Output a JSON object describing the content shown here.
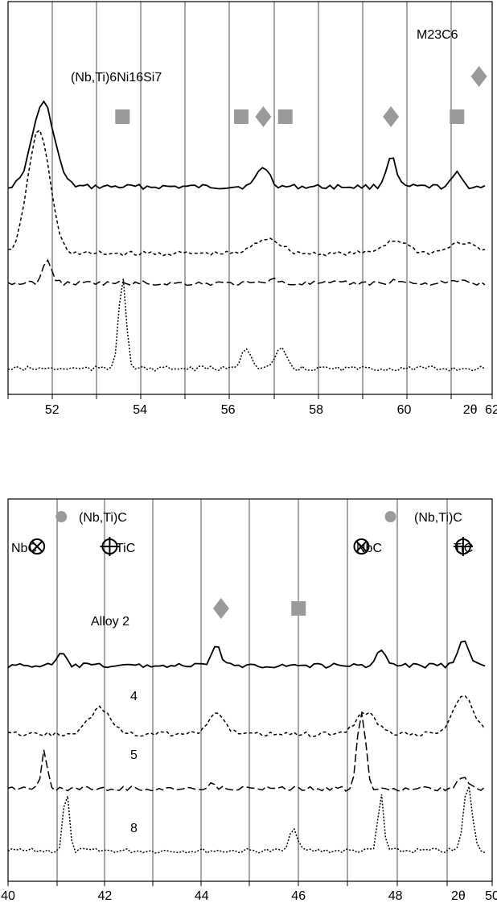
{
  "chart_data": [
    {
      "type": "line",
      "panel": "top",
      "xlim": [
        51,
        62
      ],
      "x_ticks": [
        "52",
        "54",
        "56",
        "58",
        "60",
        "2θ",
        "62"
      ],
      "x_tick_values": [
        52,
        54,
        56,
        58,
        60,
        61.5,
        62
      ],
      "annotations": [
        {
          "text": "(Nb,Ti)6Ni16Si7",
          "phase": "(Nb,Ti)6Ni16Si7",
          "marker": "square"
        },
        {
          "text": "M23C6",
          "phase": "M23C6",
          "marker": "diamond"
        }
      ],
      "phase_markers": [
        {
          "shape": "square",
          "x": 53.6
        },
        {
          "shape": "square",
          "x": 56.3
        },
        {
          "shape": "diamond",
          "x": 56.8
        },
        {
          "shape": "square",
          "x": 57.3
        },
        {
          "shape": "diamond",
          "x": 59.7
        },
        {
          "shape": "square",
          "x": 61.2
        },
        {
          "shape": "diamond",
          "x": 61.7
        }
      ],
      "series": [
        {
          "style": "solid",
          "baseline": 0.78,
          "peaks": [
            [
              51.8,
              1.9,
              0.35
            ],
            [
              56.8,
              0.45,
              0.2
            ],
            [
              59.7,
              0.7,
              0.15
            ],
            [
              61.2,
              0.3,
              0.15
            ]
          ]
        },
        {
          "style": "dashed",
          "baseline": 0.55,
          "peaks": [
            [
              51.7,
              2.8,
              0.35
            ],
            [
              56.9,
              0.35,
              0.4
            ],
            [
              59.8,
              0.3,
              0.4
            ],
            [
              61.3,
              0.25,
              0.4
            ]
          ]
        },
        {
          "style": "longdash",
          "baseline": 0.35,
          "peaks": [
            [
              51.9,
              0.5,
              0.15
            ],
            [
              57.0,
              0.12,
              0.15
            ],
            [
              59.8,
              0.07,
              0.2
            ],
            [
              61.2,
              0.05,
              0.2
            ]
          ]
        },
        {
          "style": "dotted",
          "baseline": 0.12,
          "peaks": [
            [
              53.6,
              2.1,
              0.12
            ],
            [
              56.4,
              0.5,
              0.15
            ],
            [
              57.2,
              0.5,
              0.15
            ]
          ]
        }
      ]
    },
    {
      "type": "line",
      "panel": "bottom",
      "xlim": [
        40,
        50
      ],
      "x_ticks": [
        "40",
        "42",
        "44",
        "46",
        "48",
        "2θ",
        "50"
      ],
      "x_tick_values": [
        40,
        42,
        44,
        46,
        48,
        49.3,
        50
      ],
      "annotations": [
        {
          "text": "(Nb,Ti)C",
          "phase": "(Nb,Ti)C",
          "marker": "dot"
        },
        {
          "text": "(Nb,Ti)C",
          "phase": "(Nb,Ti)C",
          "marker": "dot"
        },
        {
          "text": "NbC",
          "phase": "NbC",
          "marker": "otimes"
        },
        {
          "text": "TiC",
          "phase": "TiC",
          "marker": "oplus"
        },
        {
          "text": "NbC",
          "phase": "NbC",
          "marker": "otimes"
        },
        {
          "text": "TiC",
          "phase": "TiC",
          "marker": "oplus"
        }
      ],
      "phase_markers": [
        {
          "shape": "dot",
          "x": 41.1
        },
        {
          "shape": "dot",
          "x": 47.9
        },
        {
          "shape": "otimes",
          "x": 40.6
        },
        {
          "shape": "oplus",
          "x": 42.1
        },
        {
          "shape": "otimes",
          "x": 47.3
        },
        {
          "shape": "oplus",
          "x": 49.4
        },
        {
          "shape": "diamond",
          "x": 44.4
        },
        {
          "shape": "square",
          "x": 46.0
        }
      ],
      "series": [
        {
          "name": "Alloy 2",
          "label": "Alloy 2",
          "style": "solid",
          "baseline": 0.76,
          "peaks": [
            [
              41.1,
              0.25,
              0.12
            ],
            [
              44.3,
              0.45,
              0.12
            ],
            [
              47.7,
              0.3,
              0.15
            ],
            [
              49.4,
              0.5,
              0.15
            ]
          ]
        },
        {
          "name": "4",
          "label": "4",
          "style": "dashed",
          "baseline": 0.55,
          "peaks": [
            [
              41.9,
              0.55,
              0.3
            ],
            [
              44.3,
              0.4,
              0.25
            ],
            [
              47.4,
              0.45,
              0.3
            ],
            [
              49.4,
              0.8,
              0.3
            ]
          ]
        },
        {
          "name": "5",
          "label": "5",
          "style": "longdash",
          "baseline": 0.35,
          "peaks": [
            [
              40.75,
              0.8,
              0.08
            ],
            [
              44.2,
              0.12,
              0.1
            ],
            [
              47.3,
              1.6,
              0.12
            ],
            [
              49.4,
              0.3,
              0.12
            ]
          ]
        },
        {
          "name": "8",
          "label": "8",
          "style": "dotted",
          "baseline": 0.12,
          "peaks": [
            [
              41.2,
              1.3,
              0.08
            ],
            [
              45.9,
              0.5,
              0.1
            ],
            [
              47.7,
              1.2,
              0.08
            ],
            [
              49.5,
              1.4,
              0.12
            ]
          ]
        }
      ]
    }
  ]
}
